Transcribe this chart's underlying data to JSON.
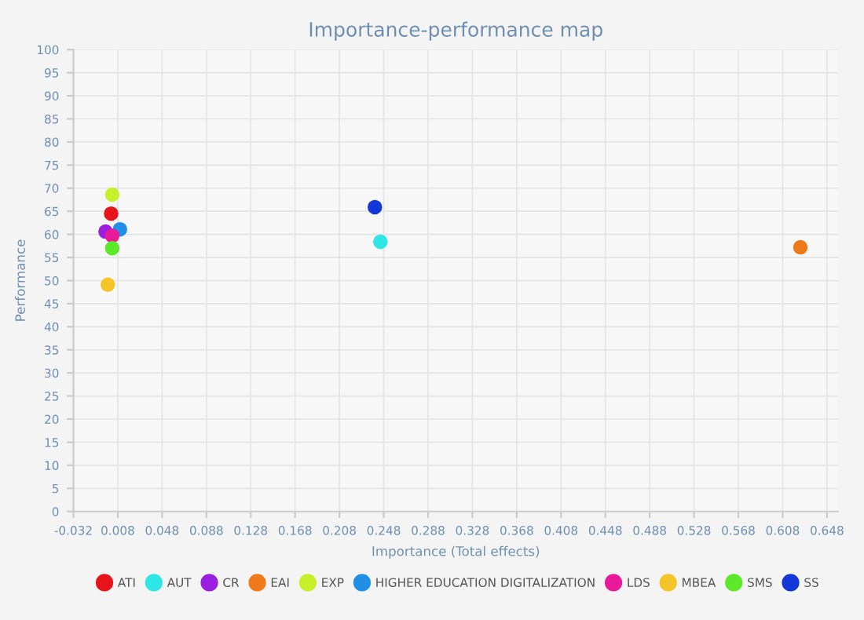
{
  "chart_data": {
    "type": "scatter",
    "title": "Importance-performance map",
    "xlabel": "Importance (Total effects)",
    "ylabel": "Performance",
    "xlim": [
      -0.032,
      0.658
    ],
    "ylim": [
      0,
      100
    ],
    "xticks": [
      -0.032,
      0.008,
      0.048,
      0.088,
      0.128,
      0.168,
      0.208,
      0.248,
      0.288,
      0.328,
      0.368,
      0.408,
      0.448,
      0.488,
      0.528,
      0.568,
      0.608,
      0.648
    ],
    "yticks": [
      0,
      5,
      10,
      15,
      20,
      25,
      30,
      35,
      40,
      45,
      50,
      55,
      60,
      65,
      70,
      75,
      80,
      85,
      90,
      95,
      100
    ],
    "grid": true,
    "legend": "bottom",
    "marker": "circle",
    "series": [
      {
        "name": "ATI",
        "color": "#e8141b",
        "x": [
          0.002
        ],
        "values": [
          64.5
        ]
      },
      {
        "name": "AUT",
        "color": "#2ee6e6",
        "x": [
          0.245
        ],
        "values": [
          58.4
        ]
      },
      {
        "name": "CR",
        "color": "#9b1fe0",
        "x": [
          -0.003
        ],
        "values": [
          60.6
        ]
      },
      {
        "name": "EAI",
        "color": "#f07a1a",
        "x": [
          0.624
        ],
        "values": [
          57.2
        ]
      },
      {
        "name": "EXP",
        "color": "#c8f028",
        "x": [
          0.003
        ],
        "values": [
          68.6
        ]
      },
      {
        "name": "HIGHER EDUCATION DIGITALIZATION",
        "color": "#1f8fe8",
        "x": [
          0.01
        ],
        "values": [
          61.1
        ]
      },
      {
        "name": "LDS",
        "color": "#e81a9a",
        "x": [
          0.003
        ],
        "values": [
          59.7
        ]
      },
      {
        "name": "MBEA",
        "color": "#f5c428",
        "x": [
          -0.001
        ],
        "values": [
          49.1
        ]
      },
      {
        "name": "SMS",
        "color": "#5de82a",
        "x": [
          0.003
        ],
        "values": [
          57.0
        ]
      },
      {
        "name": "SS",
        "color": "#1438d8",
        "x": [
          0.24
        ],
        "values": [
          65.9
        ]
      }
    ]
  }
}
